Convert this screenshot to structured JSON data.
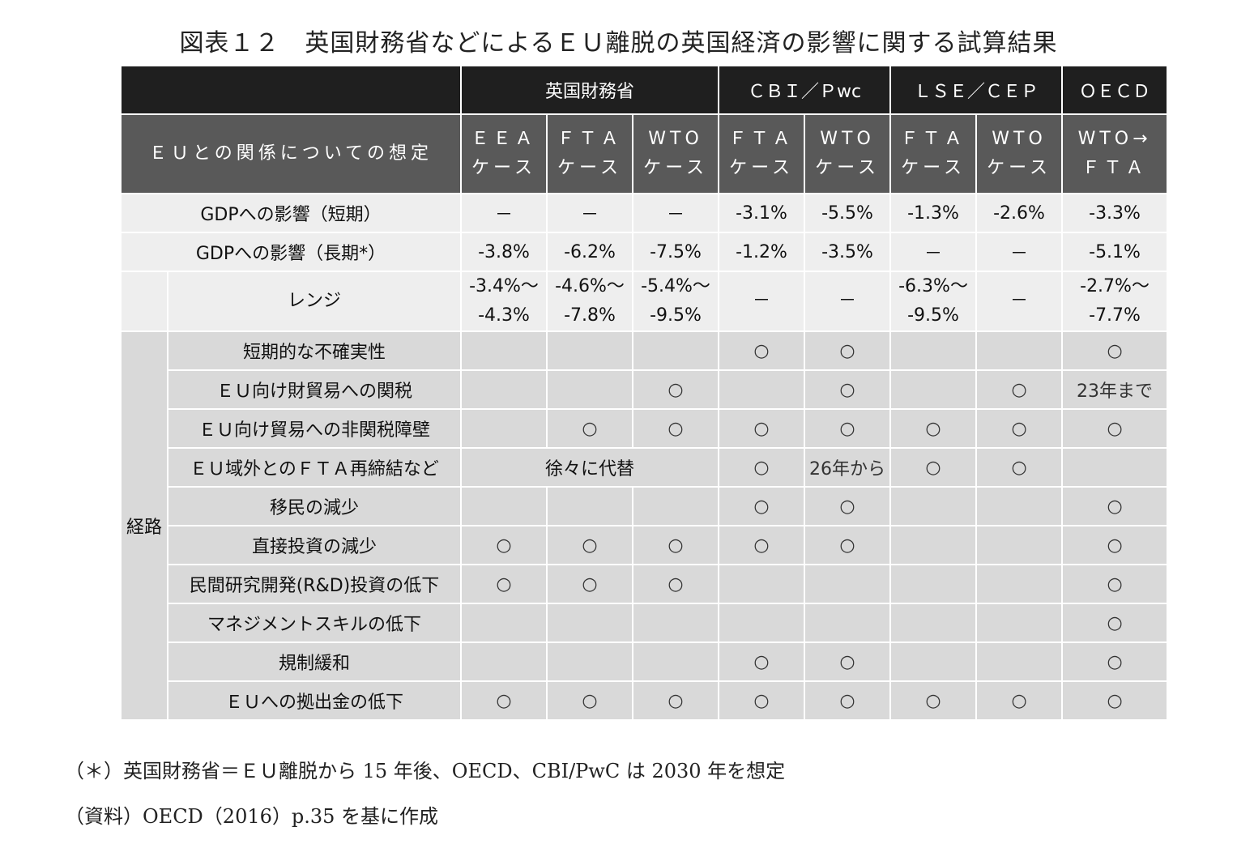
{
  "title": "図表１２　英国財務省などによるＥＵ離脱の英国経済の影響に関する試算結果",
  "table": {
    "groups": [
      "英国財務省",
      "ＣＢＩ／Ｐwc",
      "ＬＳＥ／ＣＥＰ",
      "ＯＥＣＤ"
    ],
    "assumption_label": "ＥＵとの関係についての想定",
    "subheaders": [
      {
        "l1": "ＥＥＡ",
        "l2": "ケース"
      },
      {
        "l1": "ＦＴＡ",
        "l2": "ケース"
      },
      {
        "l1": "WTO",
        "l2": "ケース"
      },
      {
        "l1": "ＦＴＡ",
        "l2": "ケース"
      },
      {
        "l1": "WTO",
        "l2": "ケース"
      },
      {
        "l1": "ＦＴＡ",
        "l2": "ケース"
      },
      {
        "l1": "WTO",
        "l2": "ケース"
      },
      {
        "l1": "WTO→",
        "l2": "ＦＴＡ"
      }
    ],
    "gdp_short": {
      "label": "GDPへの影響（短期）",
      "values": [
        "－",
        "－",
        "－",
        "-3.1%",
        "-5.5%",
        "-1.3%",
        "-2.6%",
        "-3.3%"
      ]
    },
    "gdp_long": {
      "label": "GDPへの影響（長期*）",
      "values": [
        "-3.8%",
        "-6.2%",
        "-7.5%",
        "-1.2%",
        "-3.5%",
        "－",
        "－",
        "-5.1%"
      ]
    },
    "range": {
      "label": "レンジ",
      "values": [
        {
          "l1": "-3.4%～",
          "l2": "-4.3%"
        },
        {
          "l1": "-4.6%～",
          "l2": "-7.8%"
        },
        {
          "l1": "-5.4%～",
          "l2": "-9.5%"
        },
        {
          "l1": "－",
          "l2": ""
        },
        {
          "l1": "－",
          "l2": ""
        },
        {
          "l1": "-6.3%～",
          "l2": "-9.5%"
        },
        {
          "l1": "－",
          "l2": ""
        },
        {
          "l1": "-2.7%～",
          "l2": "-7.7%"
        }
      ]
    },
    "path_label": "経路",
    "paths": [
      {
        "label": "短期的な不確実性",
        "cells": [
          "",
          "",
          "",
          "○",
          "○",
          "",
          "",
          "○"
        ]
      },
      {
        "label": "ＥＵ向け財貿易への関税",
        "cells": [
          "",
          "",
          "○",
          "",
          "○",
          "",
          "○",
          "23年まで"
        ]
      },
      {
        "label": "ＥＵ向け貿易への非関税障壁",
        "cells": [
          "",
          "○",
          "○",
          "○",
          "○",
          "○",
          "○",
          "○"
        ]
      },
      {
        "label": "ＥＵ域外とのＦＴＡ再締結など",
        "merged": "徐々に代替",
        "cells": [
          "○",
          "26年から",
          "○",
          "○",
          ""
        ]
      },
      {
        "label": "移民の減少",
        "cells": [
          "",
          "",
          "",
          "○",
          "○",
          "",
          "",
          "○"
        ]
      },
      {
        "label": "直接投資の減少",
        "cells": [
          "○",
          "○",
          "○",
          "○",
          "○",
          "",
          "",
          "○"
        ]
      },
      {
        "label": "民間研究開発(R&D)投資の低下",
        "cells": [
          "○",
          "○",
          "○",
          "",
          "",
          "",
          "",
          "○"
        ]
      },
      {
        "label": "マネジメントスキルの低下",
        "cells": [
          "",
          "",
          "",
          "",
          "",
          "",
          "",
          "○"
        ]
      },
      {
        "label": "規制緩和",
        "cells": [
          "",
          "",
          "",
          "○",
          "○",
          "",
          "",
          "○"
        ]
      },
      {
        "label": "ＥＵへの拠出金の低下",
        "cells": [
          "○",
          "○",
          "○",
          "○",
          "○",
          "○",
          "○",
          "○"
        ]
      }
    ]
  },
  "notes": {
    "asterisk": "（＊）英国財務省＝ＥＵ離脱から 15 年後、OECD、CBI/PwC は 2030 年を想定",
    "source": "（資料）OECD（2016）p.35 を基に作成"
  }
}
